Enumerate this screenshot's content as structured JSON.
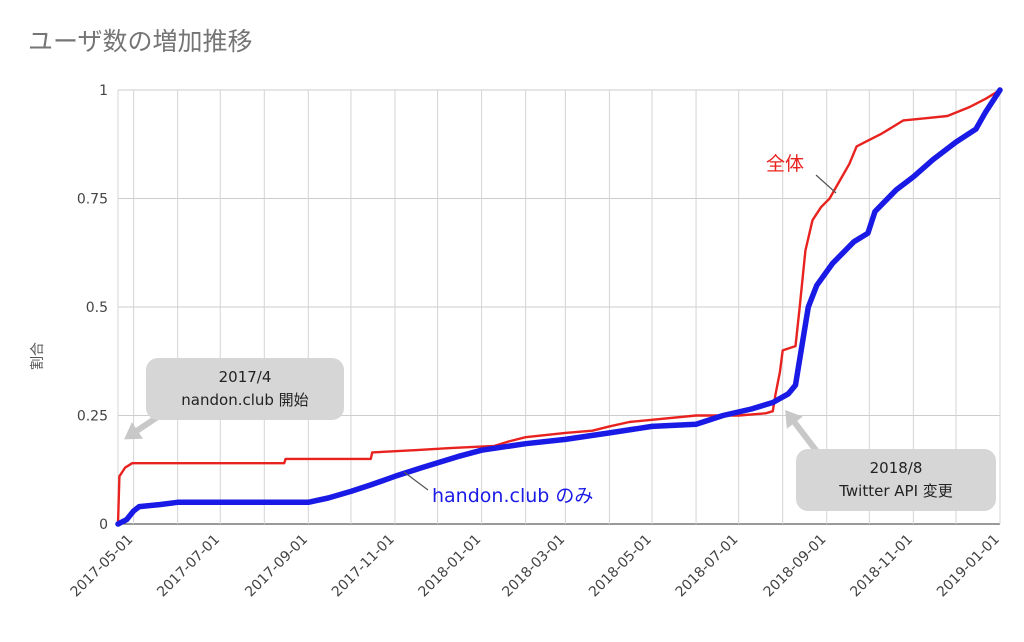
{
  "title": "ユーザ数の増加推移",
  "chart_data": {
    "type": "line",
    "title": "ユーザ数の増加推移",
    "xlabel": "",
    "ylabel": "割合",
    "x_range": [
      "2017-04-20",
      "2019-01-01"
    ],
    "ylim": [
      0,
      1
    ],
    "grid": true,
    "x_ticks": [
      "2017-05-01",
      "2017-07-01",
      "2017-09-01",
      "2017-11-01",
      "2018-01-01",
      "2018-03-01",
      "2018-05-01",
      "2018-07-01",
      "2018-09-01",
      "2018-11-01",
      "2019-01-01"
    ],
    "y_ticks": [
      0,
      0.25,
      0.5,
      0.75,
      1
    ],
    "y_tick_labels": [
      "0",
      "0.25",
      "0.5",
      "0.75",
      "1"
    ],
    "series": [
      {
        "name": "全体",
        "color": "#e8231f",
        "points": [
          [
            "2017-04-20",
            0
          ],
          [
            "2017-04-21",
            0.11
          ],
          [
            "2017-04-25",
            0.13
          ],
          [
            "2017-04-30",
            0.14
          ],
          [
            "2017-08-15",
            0.14
          ],
          [
            "2017-08-16",
            0.15
          ],
          [
            "2017-10-15",
            0.15
          ],
          [
            "2017-10-16",
            0.165
          ],
          [
            "2017-11-15",
            0.17
          ],
          [
            "2017-12-10",
            0.175
          ],
          [
            "2018-01-10",
            0.18
          ],
          [
            "2018-01-20",
            0.19
          ],
          [
            "2018-02-01",
            0.2
          ],
          [
            "2018-03-01",
            0.21
          ],
          [
            "2018-03-20",
            0.215
          ],
          [
            "2018-04-01",
            0.225
          ],
          [
            "2018-04-15",
            0.235
          ],
          [
            "2018-05-01",
            0.24
          ],
          [
            "2018-06-01",
            0.25
          ],
          [
            "2018-07-01",
            0.25
          ],
          [
            "2018-07-20",
            0.255
          ],
          [
            "2018-07-25",
            0.26
          ],
          [
            "2018-07-27",
            0.3
          ],
          [
            "2018-07-30",
            0.35
          ],
          [
            "2018-08-01",
            0.4
          ],
          [
            "2018-08-10",
            0.41
          ],
          [
            "2018-08-13",
            0.5
          ],
          [
            "2018-08-17",
            0.63
          ],
          [
            "2018-08-22",
            0.7
          ],
          [
            "2018-08-28",
            0.73
          ],
          [
            "2018-09-03",
            0.75
          ],
          [
            "2018-09-10",
            0.79
          ],
          [
            "2018-09-17",
            0.83
          ],
          [
            "2018-09-22",
            0.87
          ],
          [
            "2018-09-28",
            0.88
          ],
          [
            "2018-10-10",
            0.9
          ],
          [
            "2018-10-25",
            0.93
          ],
          [
            "2018-11-10",
            0.935
          ],
          [
            "2018-11-25",
            0.94
          ],
          [
            "2018-12-10",
            0.96
          ],
          [
            "2018-12-22",
            0.98
          ],
          [
            "2019-01-01",
            1.0
          ]
        ]
      },
      {
        "name": "handon.club のみ",
        "color": "#1a1ae6",
        "points": [
          [
            "2017-04-20",
            0
          ],
          [
            "2017-04-26",
            0.01
          ],
          [
            "2017-05-01",
            0.03
          ],
          [
            "2017-05-05",
            0.04
          ],
          [
            "2017-05-20",
            0.045
          ],
          [
            "2017-06-01",
            0.05
          ],
          [
            "2017-08-20",
            0.05
          ],
          [
            "2017-09-01",
            0.05
          ],
          [
            "2017-09-15",
            0.06
          ],
          [
            "2017-10-01",
            0.075
          ],
          [
            "2017-10-15",
            0.09
          ],
          [
            "2017-11-01",
            0.11
          ],
          [
            "2017-11-20",
            0.13
          ],
          [
            "2017-12-15",
            0.155
          ],
          [
            "2018-01-01",
            0.17
          ],
          [
            "2018-02-01",
            0.185
          ],
          [
            "2018-03-01",
            0.195
          ],
          [
            "2018-04-01",
            0.21
          ],
          [
            "2018-05-01",
            0.225
          ],
          [
            "2018-06-01",
            0.23
          ],
          [
            "2018-06-20",
            0.25
          ],
          [
            "2018-07-10",
            0.265
          ],
          [
            "2018-07-25",
            0.28
          ],
          [
            "2018-08-05",
            0.3
          ],
          [
            "2018-08-10",
            0.32
          ],
          [
            "2018-08-12",
            0.36
          ],
          [
            "2018-08-15",
            0.42
          ],
          [
            "2018-08-19",
            0.5
          ],
          [
            "2018-08-25",
            0.55
          ],
          [
            "2018-09-05",
            0.6
          ],
          [
            "2018-09-20",
            0.65
          ],
          [
            "2018-09-30",
            0.67
          ],
          [
            "2018-10-05",
            0.72
          ],
          [
            "2018-10-20",
            0.77
          ],
          [
            "2018-11-01",
            0.8
          ],
          [
            "2018-11-15",
            0.84
          ],
          [
            "2018-12-01",
            0.88
          ],
          [
            "2018-12-15",
            0.91
          ],
          [
            "2018-12-22",
            0.95
          ],
          [
            "2019-01-01",
            1.0
          ]
        ]
      }
    ],
    "series_labels": {
      "all": "全体",
      "handon": "handon.club のみ"
    },
    "annotations": [
      {
        "lines": [
          "2017/4",
          "nandon.club 開始"
        ],
        "points_to": [
          "2017-04-22",
          0.19
        ]
      },
      {
        "lines": [
          "2018/8",
          "Twitter API 変更"
        ],
        "points_to": [
          "2018-08-01",
          0.27
        ]
      }
    ]
  }
}
